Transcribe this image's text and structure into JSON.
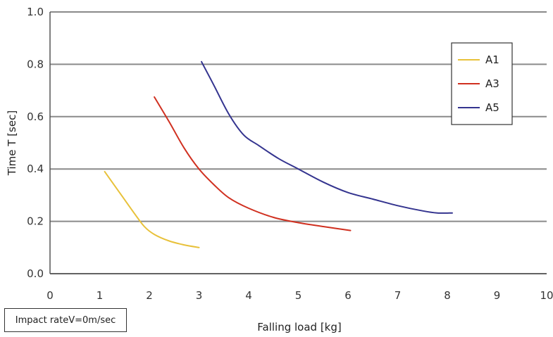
{
  "chart_data": {
    "type": "line",
    "title": "",
    "xlabel": "Falling load [kg]",
    "ylabel": "Time T [sec]",
    "xlim": [
      0,
      10
    ],
    "ylim": [
      0,
      1.0
    ],
    "x_ticks": [
      "0",
      "1",
      "2",
      "3",
      "4",
      "5",
      "6",
      "7",
      "8",
      "9",
      "10"
    ],
    "y_ticks": [
      "0.0",
      "0.2",
      "0.4",
      "0.6",
      "0.8",
      "1.0"
    ],
    "grid": "horizontal",
    "legend_position": "top-right",
    "series": [
      {
        "name": "A1",
        "color": "#e8c13a",
        "points": [
          [
            1.1,
            0.39
          ],
          [
            1.4,
            0.31
          ],
          [
            1.7,
            0.23
          ],
          [
            1.9,
            0.18
          ],
          [
            2.1,
            0.15
          ],
          [
            2.4,
            0.125
          ],
          [
            2.7,
            0.11
          ],
          [
            3.0,
            0.1
          ]
        ]
      },
      {
        "name": "A3",
        "color": "#d03020",
        "points": [
          [
            2.1,
            0.675
          ],
          [
            2.4,
            0.58
          ],
          [
            2.7,
            0.48
          ],
          [
            3.0,
            0.4
          ],
          [
            3.3,
            0.34
          ],
          [
            3.6,
            0.29
          ],
          [
            4.0,
            0.25
          ],
          [
            4.5,
            0.215
          ],
          [
            5.0,
            0.195
          ],
          [
            5.5,
            0.18
          ],
          [
            6.05,
            0.165
          ]
        ]
      },
      {
        "name": "A5",
        "color": "#34348f",
        "points": [
          [
            3.05,
            0.81
          ],
          [
            3.3,
            0.72
          ],
          [
            3.6,
            0.61
          ],
          [
            3.9,
            0.53
          ],
          [
            4.2,
            0.49
          ],
          [
            4.6,
            0.44
          ],
          [
            5.0,
            0.4
          ],
          [
            5.5,
            0.35
          ],
          [
            6.0,
            0.31
          ],
          [
            6.5,
            0.285
          ],
          [
            7.0,
            0.26
          ],
          [
            7.5,
            0.24
          ],
          [
            7.8,
            0.232
          ],
          [
            8.1,
            0.232
          ]
        ]
      }
    ],
    "annotations": [
      "Impact rateV=0m/sec"
    ]
  }
}
